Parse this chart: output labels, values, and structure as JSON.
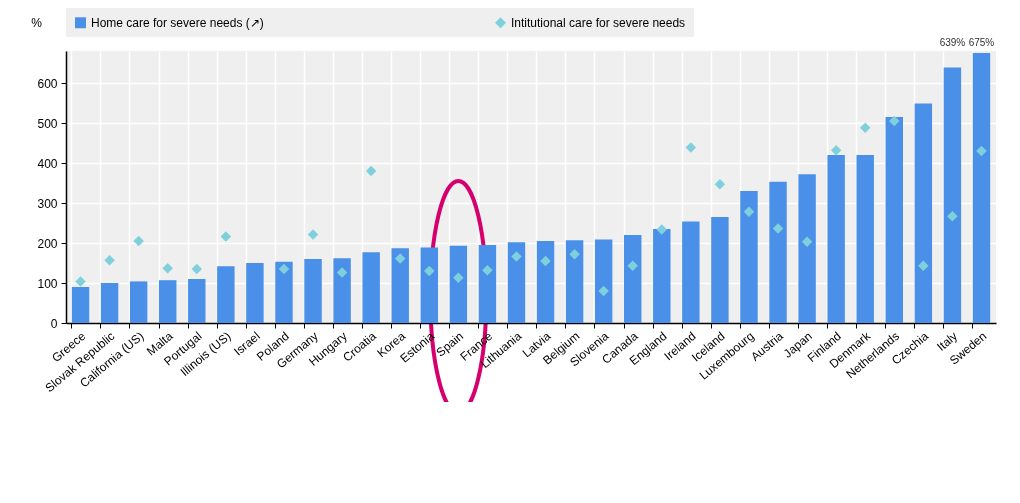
{
  "chart_data": {
    "type": "bar",
    "ylabel": "%",
    "categories": [
      "Greece",
      "Slovak Republic",
      "California (US)",
      "Malta",
      "Portugal",
      "Illinois (US)",
      "Israel",
      "Poland",
      "Germany",
      "Hungary",
      "Croatia",
      "Korea",
      "Estonia",
      "Spain",
      "France",
      "Lithuania",
      "Latvia",
      "Belgium",
      "Slovenia",
      "Canada",
      "England",
      "Ireland",
      "Iceland",
      "Luxembourg",
      "Austria",
      "Japan",
      "Finland",
      "Denmark",
      "Netherlands",
      "Czechia",
      "Italy",
      "Sweden"
    ],
    "series": [
      {
        "name": "Home care for severe needs (↗)",
        "color": "#4a90e8",
        "values": [
          90,
          100,
          104,
          107,
          110,
          142,
          150,
          153,
          160,
          162,
          177,
          187,
          189,
          193,
          195,
          202,
          205,
          207,
          209,
          220,
          235,
          254,
          265,
          330,
          353,
          372,
          420,
          420,
          515,
          549,
          639,
          675
        ],
        "value_labels": [
          null,
          null,
          null,
          null,
          null,
          null,
          null,
          null,
          null,
          null,
          null,
          null,
          null,
          null,
          null,
          null,
          null,
          null,
          null,
          null,
          null,
          null,
          null,
          null,
          null,
          null,
          null,
          null,
          null,
          null,
          "639%",
          "675%"
        ]
      },
      {
        "name": "Intitutional care for severe needs",
        "type": "scatter",
        "marker": "diamond",
        "color": "#7fd0dc",
        "values": [
          104,
          157,
          205,
          137,
          135,
          216,
          null,
          135,
          221,
          126,
          380,
          161,
          130,
          113,
          132,
          166,
          155,
          172,
          80,
          143,
          234,
          439,
          347,
          278,
          236,
          203,
          432,
          488,
          505,
          143,
          267,
          430
        ]
      }
    ],
    "ylim": [
      0,
      680
    ],
    "yticks": [
      0,
      100,
      200,
      300,
      400,
      500,
      600
    ],
    "grid": true,
    "legend": "top"
  }
}
